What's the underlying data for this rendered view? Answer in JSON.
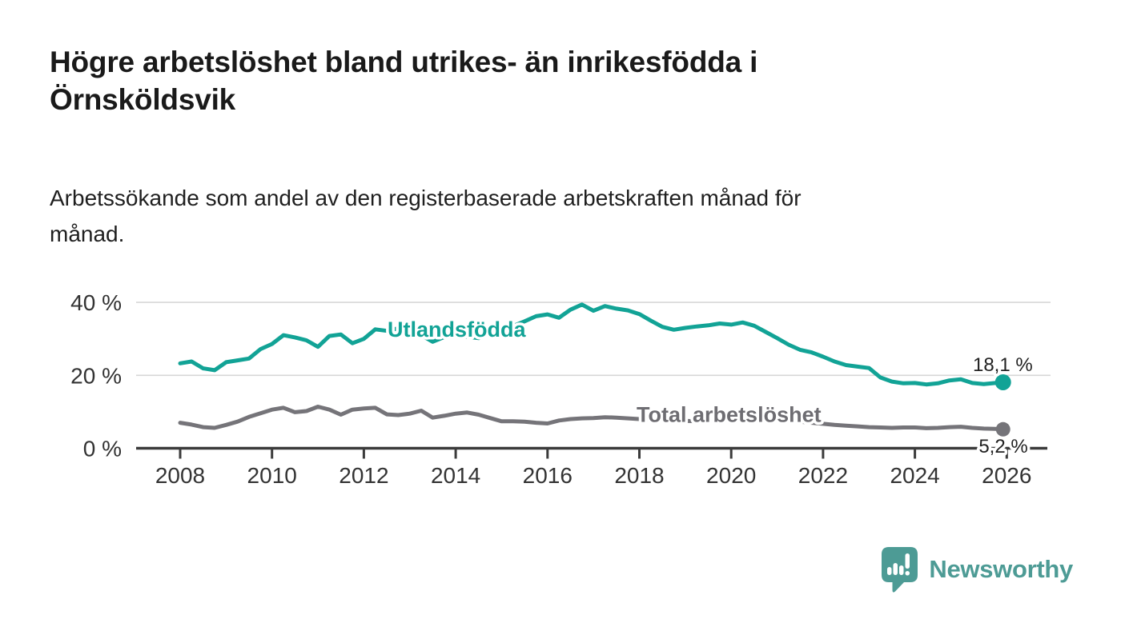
{
  "title": "Högre arbetslöshet bland utrikes- än inrikesfödda i Örnsköldsvik",
  "subtitle": "Arbetssökande som andel av den registerbaserade arbetskraften månad för månad.",
  "branding": {
    "name": "Newsworthy",
    "logo_icon": "speech-bubble-bar-chart-icon",
    "color": "#4d9b95"
  },
  "chart_data": {
    "type": "line",
    "title": "",
    "xlabel": "",
    "ylabel": "",
    "grid": "horizontal-only",
    "xlim": [
      2007.0,
      2026.9
    ],
    "ylim": [
      0,
      43.5
    ],
    "x_tick_years": [
      2008,
      2010,
      2012,
      2014,
      2016,
      2018,
      2020,
      2022,
      2024,
      2026
    ],
    "x_tick_labels": [
      "2008",
      "2010",
      "2012",
      "2014",
      "2016",
      "2018",
      "2020",
      "2022",
      "2024",
      "2026"
    ],
    "y_ticks": [
      {
        "value": 0,
        "label": "0 %"
      },
      {
        "value": 20,
        "label": "20 %"
      },
      {
        "value": 40,
        "label": "40 %"
      }
    ],
    "colors": {
      "utlandsfodda": "#12a396",
      "total": "#757479",
      "gridline": "#d7d7d7",
      "axis": "#3b3b3b",
      "tick_text": "#333333",
      "end_label_text": "#222222"
    },
    "x": [
      2008.0,
      2008.25,
      2008.5,
      2008.75,
      2009.0,
      2009.25,
      2009.5,
      2009.75,
      2010.0,
      2010.25,
      2010.5,
      2010.75,
      2011.0,
      2011.25,
      2011.5,
      2011.75,
      2012.0,
      2012.25,
      2012.5,
      2012.75,
      2013.0,
      2013.25,
      2013.5,
      2013.75,
      2014.0,
      2014.25,
      2014.5,
      2014.75,
      2015.0,
      2015.25,
      2015.5,
      2015.75,
      2016.0,
      2016.25,
      2016.5,
      2016.75,
      2017.0,
      2017.25,
      2017.5,
      2017.75,
      2018.0,
      2018.25,
      2018.5,
      2018.75,
      2019.0,
      2019.25,
      2019.5,
      2019.75,
      2020.0,
      2020.25,
      2020.5,
      2020.75,
      2021.0,
      2021.25,
      2021.5,
      2021.75,
      2022.0,
      2022.25,
      2022.5,
      2022.75,
      2023.0,
      2023.25,
      2023.5,
      2023.75,
      2024.0,
      2024.25,
      2024.5,
      2024.75,
      2025.0,
      2025.25,
      2025.5,
      2025.75,
      2025.92
    ],
    "series": [
      {
        "name": "Utlandsfödda",
        "color": "#12a396",
        "end_value": 18.1,
        "end_label": "18,1 %",
        "end_label_offset": [
          37,
          -14
        ],
        "name_label_pos": {
          "year": 2014.02,
          "value": 30.6
        },
        "values": [
          23.3,
          23.8,
          21.9,
          21.4,
          23.6,
          24.1,
          24.6,
          27.2,
          28.6,
          31.0,
          30.4,
          29.6,
          27.8,
          30.8,
          31.2,
          28.8,
          30.0,
          32.6,
          32.2,
          32.9,
          32.0,
          31.0,
          29.2,
          30.5,
          31.2,
          30.6,
          30.2,
          31.5,
          32.0,
          33.5,
          34.8,
          36.2,
          36.7,
          35.8,
          38.0,
          39.4,
          37.7,
          39.0,
          38.3,
          37.8,
          36.8,
          35.0,
          33.3,
          32.5,
          33.0,
          33.4,
          33.7,
          34.2,
          33.9,
          34.5,
          33.6,
          31.9,
          30.2,
          28.4,
          27.0,
          26.3,
          25.1,
          23.8,
          22.8,
          22.4,
          22.0,
          19.4,
          18.3,
          17.8,
          17.9,
          17.5,
          17.8,
          18.6,
          18.9,
          17.9,
          17.6,
          17.9,
          18.1
        ]
      },
      {
        "name": "Total arbetslöshet",
        "color": "#757479",
        "end_value": 5.2,
        "end_label": "5,2 %",
        "end_label_offset": [
          31,
          29
        ],
        "name_label_pos": {
          "year": 2019.95,
          "value": 7.2
        },
        "values": [
          7.0,
          6.5,
          5.8,
          5.6,
          6.4,
          7.3,
          8.6,
          9.6,
          10.6,
          11.1,
          9.9,
          10.2,
          11.4,
          10.6,
          9.2,
          10.6,
          10.9,
          11.1,
          9.3,
          9.1,
          9.5,
          10.3,
          8.4,
          8.9,
          9.5,
          9.8,
          9.2,
          8.3,
          7.4,
          7.4,
          7.3,
          7.0,
          6.8,
          7.6,
          8.0,
          8.2,
          8.3,
          8.5,
          8.4,
          8.2,
          8.0,
          7.9,
          7.8,
          7.7,
          7.5,
          7.4,
          7.5,
          7.7,
          8.0,
          8.8,
          8.6,
          8.3,
          8.0,
          7.7,
          7.3,
          7.0,
          6.7,
          6.4,
          6.2,
          6.0,
          5.8,
          5.7,
          5.6,
          5.7,
          5.7,
          5.5,
          5.6,
          5.8,
          5.9,
          5.6,
          5.4,
          5.3,
          5.2
        ]
      }
    ]
  }
}
